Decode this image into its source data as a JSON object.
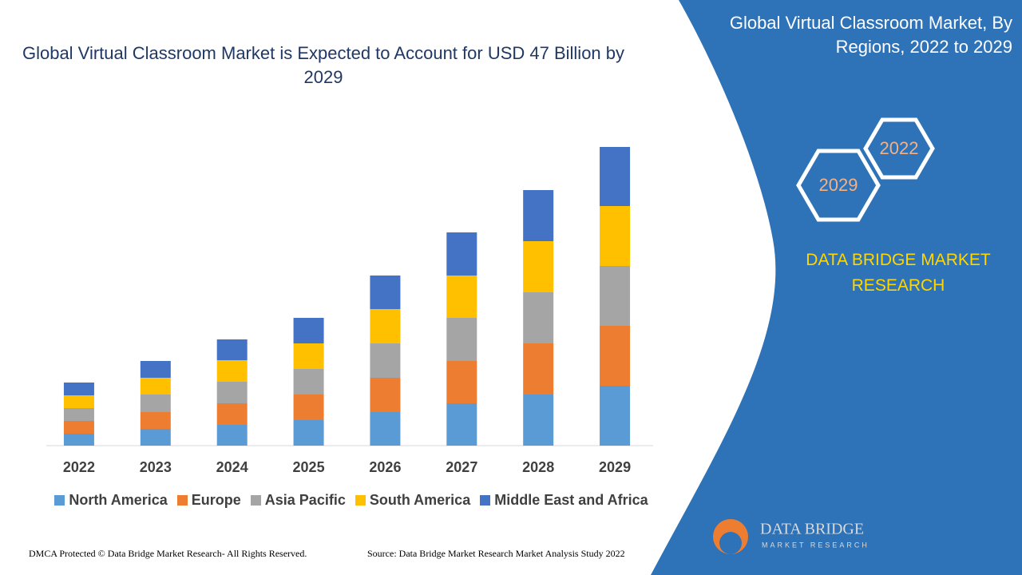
{
  "chart_data": {
    "type": "stacked-bar",
    "title": "Global Virtual Classroom Market is Expected to Account for USD 47 Billion by 2029",
    "categories": [
      "2022",
      "2023",
      "2024",
      "2025",
      "2026",
      "2027",
      "2028",
      "2029"
    ],
    "series": [
      {
        "name": "North America",
        "color": "#5b9bd5",
        "values": [
          15,
          21,
          26,
          32,
          42,
          53,
          64,
          75
        ]
      },
      {
        "name": "Europe",
        "color": "#ed7d31",
        "values": [
          16,
          21,
          27,
          32,
          43,
          53,
          64,
          75
        ]
      },
      {
        "name": "Asia Pacific",
        "color": "#a5a5a5",
        "values": [
          16,
          22,
          27,
          32,
          43,
          54,
          64,
          75
        ]
      },
      {
        "name": "South America",
        "color": "#ffc000",
        "values": [
          16,
          21,
          27,
          32,
          43,
          53,
          64,
          75
        ]
      },
      {
        "name": "Middle East and Africa",
        "color": "#4472c4",
        "values": [
          16,
          21,
          26,
          32,
          42,
          54,
          64,
          74
        ]
      }
    ],
    "ylim": [
      0,
      400
    ]
  },
  "panel": {
    "title": "Global Virtual Classroom Market, By Regions, 2022 to 2029",
    "hex_labels": [
      "2022",
      "2029"
    ],
    "brand": "DATA BRIDGE MARKET RESEARCH"
  },
  "logo": {
    "name": "DATA BRIDGE",
    "tagline": "MARKET RESEARCH"
  },
  "footer": {
    "left": "DMCA Protected © Data Bridge Market Research- All Rights Reserved.",
    "right": "Source: Data Bridge Market Research Market Analysis Study 2022"
  }
}
